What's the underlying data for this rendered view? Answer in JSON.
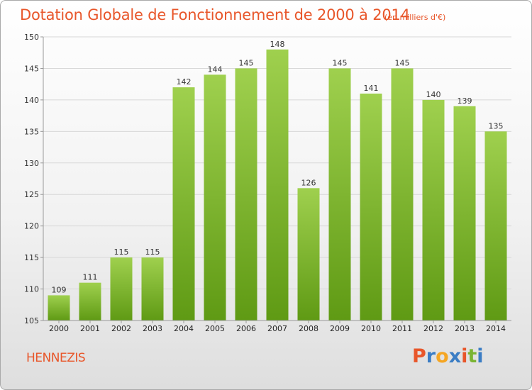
{
  "header": {
    "title": "Dotation Globale de Fonctionnement de 2000 à 2014",
    "unit": "(en milliers d'€)"
  },
  "footer": {
    "commune": "HENNEZIS",
    "logo_text": "Proxiti",
    "logo_colors": [
      "#e8562a",
      "#3b7dc4",
      "#f5a623",
      "#3b7dc4",
      "#e8562a",
      "#7ab433",
      "#3b7dc4"
    ]
  },
  "colors": {
    "title": "#e8562a",
    "bar_top": "#9fd04e",
    "bar_bottom": "#5f9a14",
    "grid": "#d8d8d8",
    "axis": "#999999"
  },
  "chart_data": {
    "type": "bar",
    "title": "Dotation Globale de Fonctionnement de 2000 à 2014",
    "unit": "(en milliers d'€)",
    "categories": [
      "2000",
      "2001",
      "2002",
      "2003",
      "2004",
      "2005",
      "2006",
      "2007",
      "2008",
      "2009",
      "2010",
      "2011",
      "2012",
      "2013",
      "2014"
    ],
    "values": [
      109,
      111,
      115,
      115,
      142,
      144,
      145,
      148,
      126,
      145,
      141,
      145,
      140,
      139,
      135
    ],
    "ylim": [
      105,
      150
    ],
    "yticks": [
      105,
      110,
      115,
      120,
      125,
      130,
      135,
      140,
      145,
      150
    ],
    "grid": true,
    "data_labels": true
  }
}
